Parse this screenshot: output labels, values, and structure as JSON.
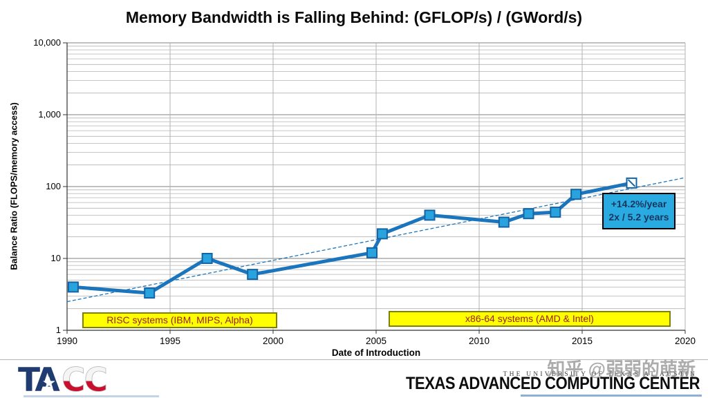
{
  "chart_data": {
    "type": "line",
    "title": "Memory Bandwidth is Falling Behind:  (GFLOP/s) / (GWord/s)",
    "xlabel": "Date of Introduction",
    "ylabel": "Balance Ratio (FLOPS/memory access)",
    "x_ticks": [
      1990,
      1995,
      2000,
      2005,
      2010,
      2015,
      2020
    ],
    "y_ticks": [
      1,
      10,
      100,
      1000,
      10000
    ],
    "y_tick_labels": [
      "1",
      "10",
      "100",
      "1,000",
      "10,000"
    ],
    "xlim": [
      1990,
      2020
    ],
    "ylim": [
      1,
      10000
    ],
    "y_scale": "log",
    "grid": true,
    "legend": "none",
    "series": [
      {
        "name": "Balance Ratio",
        "points": [
          {
            "year": 1990.3,
            "value": 4,
            "marker": "filled"
          },
          {
            "year": 1994.0,
            "value": 3.3,
            "marker": "filled"
          },
          {
            "year": 1996.8,
            "value": 10,
            "marker": "filled"
          },
          {
            "year": 1999.0,
            "value": 6,
            "marker": "filled"
          },
          {
            "year": 2004.8,
            "value": 12,
            "marker": "filled"
          },
          {
            "year": 2005.3,
            "value": 22,
            "marker": "filled"
          },
          {
            "year": 2007.6,
            "value": 40,
            "marker": "filled"
          },
          {
            "year": 2011.2,
            "value": 32,
            "marker": "filled"
          },
          {
            "year": 2012.4,
            "value": 42,
            "marker": "filled"
          },
          {
            "year": 2013.7,
            "value": 44,
            "marker": "filled"
          },
          {
            "year": 2014.7,
            "value": 78,
            "marker": "filled"
          },
          {
            "year": 2017.4,
            "value": 112,
            "marker": "open"
          }
        ]
      }
    ],
    "trendline": {
      "style": "dashed",
      "start_year": 1990,
      "start_value": 2.5,
      "end_year": 2020,
      "end_value": 133
    },
    "annotation": {
      "lines": [
        "+14.2%/year",
        "2x / 5.2 years"
      ]
    },
    "era_labels": [
      {
        "label": "RISC systems (IBM, MIPS, Alpha)",
        "year_range": [
          1991,
          2000
        ]
      },
      {
        "label": "x86-64 systems (AMD & Intel)",
        "year_range": [
          2006,
          2019
        ]
      }
    ]
  },
  "footer": {
    "logo_text": "TACC",
    "university": "THE UNIVERSITY OF TEXAS AT AUSTIN",
    "center_name": "TEXAS ADVANCED COMPUTING CENTER",
    "watermark": "知乎 @弱弱的萌新"
  },
  "colors": {
    "line": "#1b75bc",
    "marker_fill": "#29a3dd",
    "marker_border": "#1464a5",
    "grid_minor": "#b3b3b3",
    "grid_major": "#7f7f7f",
    "axis": "#333333",
    "annotation_bg": "#29abe2",
    "annotation_text": "#17365d",
    "era_bg": "#ffff00",
    "era_border": "#808000",
    "era_text": "#9e1b1b",
    "tacc_navy": "#1f3b70",
    "tacc_red": "#c8102e"
  }
}
